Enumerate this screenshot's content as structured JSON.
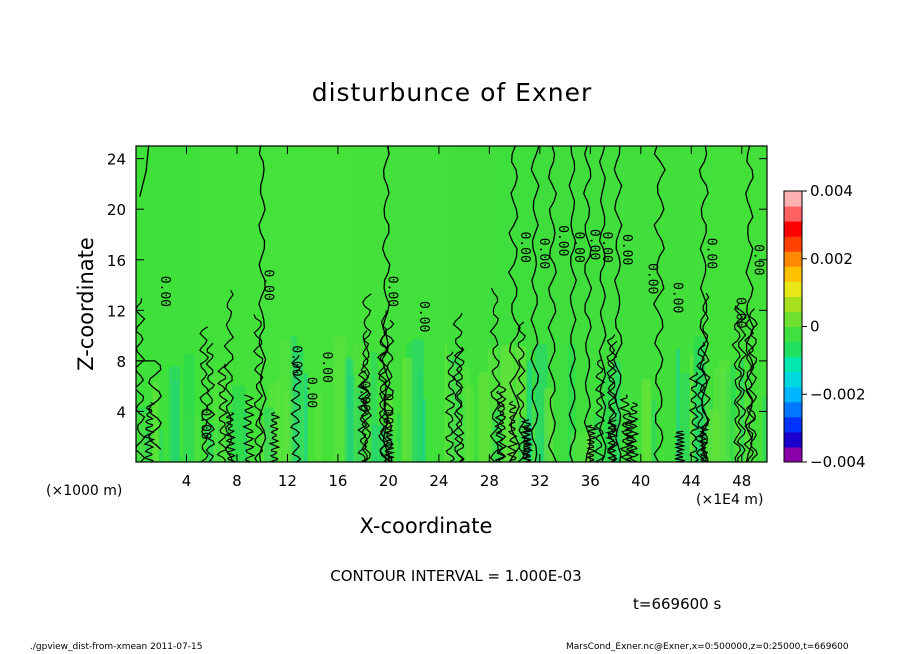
{
  "chart_data": {
    "type": "heatmap",
    "title": "disturbunce of Exner",
    "xlabel": "X-coordinate",
    "ylabel": "Z-coordinate",
    "x_unit_label": "(×1000 m)",
    "x_unit_label2": "(×1E4 m)",
    "xlim": [
      0,
      50
    ],
    "ylim": [
      0,
      25
    ],
    "x_ticks": [
      4,
      8,
      12,
      16,
      20,
      24,
      28,
      32,
      36,
      40,
      44,
      48
    ],
    "y_ticks": [
      4,
      8,
      12,
      16,
      20,
      24
    ],
    "colorbar": {
      "ticks": [
        "0.004",
        "0.002",
        "0",
        "−0.002",
        "−0.004"
      ],
      "range": [
        -0.004,
        0.004
      ],
      "colors": [
        "#8b00a8",
        "#1a00cc",
        "#0033ff",
        "#0077ff",
        "#00b6ff",
        "#00d8e0",
        "#00e8b0",
        "#20e060",
        "#40e040",
        "#70e030",
        "#a8e020",
        "#e8e818",
        "#ffc000",
        "#ff8800",
        "#ff4000",
        "#ff0000",
        "#ff6060",
        "#ffb0b0"
      ]
    },
    "contour_label": "0.00",
    "contour_interval": "CONTOUR INTERVAL = 1.000E-03",
    "time": "t=669600 s",
    "footer_left": "./gpview_dist-from-xmean   2011-07-15",
    "footer_right": "MarsCond_Exner.nc@Exner,x=0:500000,z=0:25000,t=669600",
    "contour_labels": [
      {
        "x": 2.0,
        "z": 13.5
      },
      {
        "x": 5.2,
        "z": 3.0
      },
      {
        "x": 10.2,
        "z": 14.0
      },
      {
        "x": 12.4,
        "z": 8.0
      },
      {
        "x": 13.6,
        "z": 5.5
      },
      {
        "x": 14.8,
        "z": 7.5
      },
      {
        "x": 17.8,
        "z": 5.2
      },
      {
        "x": 19.6,
        "z": 4.2
      },
      {
        "x": 20.0,
        "z": 13.5
      },
      {
        "x": 22.5,
        "z": 11.5
      },
      {
        "x": 30.5,
        "z": 17.0
      },
      {
        "x": 32.0,
        "z": 16.5
      },
      {
        "x": 33.5,
        "z": 17.5
      },
      {
        "x": 34.8,
        "z": 17.0
      },
      {
        "x": 36.0,
        "z": 17.2
      },
      {
        "x": 37.0,
        "z": 17.0
      },
      {
        "x": 38.6,
        "z": 16.8
      },
      {
        "x": 40.6,
        "z": 14.5
      },
      {
        "x": 42.6,
        "z": 13.0
      },
      {
        "x": 45.3,
        "z": 16.5
      },
      {
        "x": 49.0,
        "z": 16.0
      },
      {
        "x": 47.6,
        "z": 11.8
      }
    ]
  }
}
